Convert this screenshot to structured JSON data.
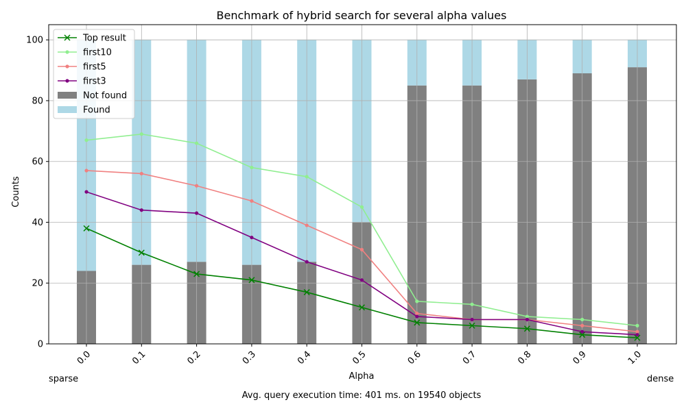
{
  "chart_data": {
    "type": "bar",
    "title": "Benchmark of hybrid search for several alpha values",
    "xlabel": "Alpha",
    "ylabel": "Counts",
    "categories": [
      "0.0",
      "0.1",
      "0.2",
      "0.3",
      "0.4",
      "0.5",
      "0.6",
      "0.7",
      "0.8",
      "0.9",
      "1.0"
    ],
    "ylim": [
      0,
      105
    ],
    "yticks": [
      0,
      20,
      40,
      60,
      80,
      100
    ],
    "grid": true,
    "legend_position": "top-left",
    "bar_series": [
      {
        "name": "Not found",
        "color": "#808080",
        "values": [
          24,
          26,
          27,
          26,
          27,
          40,
          85,
          85,
          87,
          89,
          91
        ]
      },
      {
        "name": "Found",
        "color": "#add8e6",
        "values": [
          76,
          74,
          73,
          74,
          73,
          60,
          15,
          15,
          13,
          11,
          9
        ]
      }
    ],
    "line_series": [
      {
        "name": "Top result",
        "color": "#008000",
        "marker": "x",
        "values": [
          38,
          30,
          23,
          21,
          17,
          12,
          7,
          6,
          5,
          3,
          2
        ]
      },
      {
        "name": "first10",
        "color": "#90ee90",
        "marker": "dot",
        "values": [
          67,
          69,
          66,
          58,
          55,
          45,
          14,
          13,
          9,
          8,
          6
        ]
      },
      {
        "name": "first5",
        "color": "#f08080",
        "marker": "dot",
        "values": [
          57,
          56,
          52,
          47,
          39,
          31,
          10,
          8,
          8,
          6,
          4
        ]
      },
      {
        "name": "first3",
        "color": "#800080",
        "marker": "dot",
        "values": [
          50,
          44,
          43,
          35,
          27,
          21,
          9,
          8,
          8,
          4,
          3
        ]
      }
    ],
    "legend_order": [
      "Top result",
      "first10",
      "first5",
      "first3",
      "Not found",
      "Found"
    ],
    "annotations": {
      "left": "sparse",
      "right": "dense",
      "bottom": "Avg. query execution time: 401 ms. on 19540 objects"
    }
  }
}
